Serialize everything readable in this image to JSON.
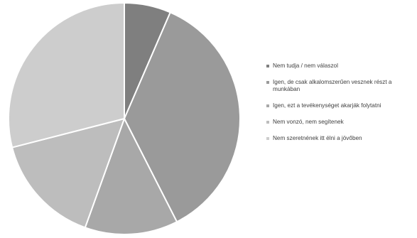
{
  "chart_data": {
    "type": "pie",
    "title": "",
    "start_angle_deg": 0,
    "direction": "clockwise",
    "legend_position": "right",
    "slices": [
      {
        "label": "Nem tudja / nem válaszol",
        "value": 6.5,
        "color": "#7f7f7f"
      },
      {
        "label": "Igen, de csak alkalomszerűen vesznek részt a munkában",
        "value": 36,
        "color": "#9a9a9a"
      },
      {
        "label": "Igen, ezt a tevékenységet akarják folytatni",
        "value": 13,
        "color": "#a8a8a8"
      },
      {
        "label": "Nem vonzó, nem segítenek",
        "value": 15.5,
        "color": "#bdbdbd"
      },
      {
        "label": "Nem szeretnének itt élni a jövőben",
        "value": 29,
        "color": "#cdcdcd"
      }
    ]
  }
}
